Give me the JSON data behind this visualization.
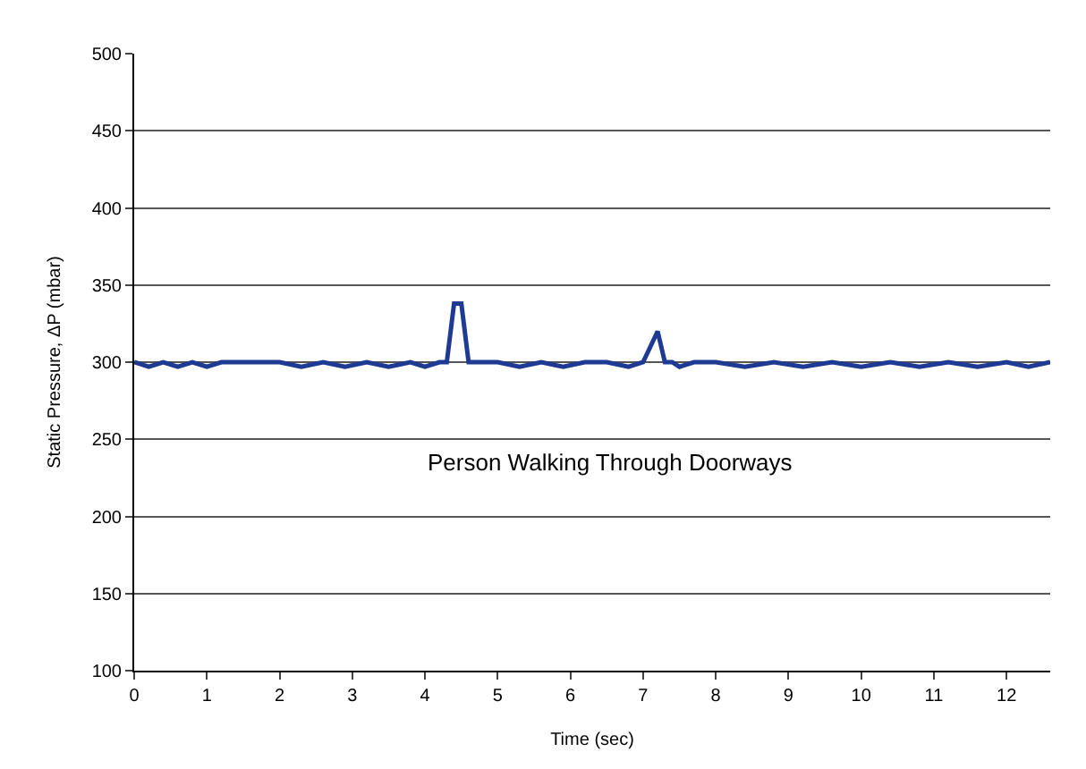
{
  "chart_data": {
    "type": "line",
    "xlabel": "Time (sec)",
    "ylabel": "Static Pressure, ΔP (mbar)",
    "x": [
      0,
      0.2,
      0.4,
      0.6,
      0.8,
      1.0,
      1.2,
      1.5,
      2.0,
      2.3,
      2.6,
      2.9,
      3.2,
      3.5,
      3.8,
      4.0,
      4.2,
      4.3,
      4.4,
      4.5,
      4.6,
      4.7,
      4.8,
      5.0,
      5.3,
      5.6,
      5.9,
      6.2,
      6.5,
      6.8,
      7.0,
      7.1,
      7.2,
      7.3,
      7.4,
      7.5,
      7.7,
      8.0,
      8.4,
      8.8,
      9.2,
      9.6,
      10.0,
      10.4,
      10.8,
      11.2,
      11.6,
      12.0,
      12.3,
      12.6
    ],
    "series": [
      {
        "color": "#1f3a93",
        "values": [
          300,
          297,
          300,
          297,
          300,
          297,
          300,
          300,
          300,
          297,
          300,
          297,
          300,
          297,
          300,
          297,
          300,
          300,
          338,
          338,
          300,
          300,
          300,
          300,
          297,
          300,
          297,
          300,
          300,
          297,
          300,
          310,
          320,
          300,
          300,
          297,
          300,
          300,
          297,
          300,
          297,
          300,
          297,
          300,
          297,
          300,
          297,
          300,
          297,
          300
        ]
      }
    ],
    "xlim": [
      0,
      12.6
    ],
    "xticks": [
      0,
      1,
      2,
      3,
      4,
      5,
      6,
      7,
      8,
      9,
      10,
      11,
      12
    ],
    "ylim": [
      100,
      500
    ],
    "yticks": [
      100,
      150,
      200,
      250,
      300,
      350,
      400,
      450,
      500
    ],
    "grid": "y",
    "legend": false,
    "marker": "none",
    "line_style": "solid",
    "annotations": [
      "Person Walking Through Doorways"
    ]
  }
}
